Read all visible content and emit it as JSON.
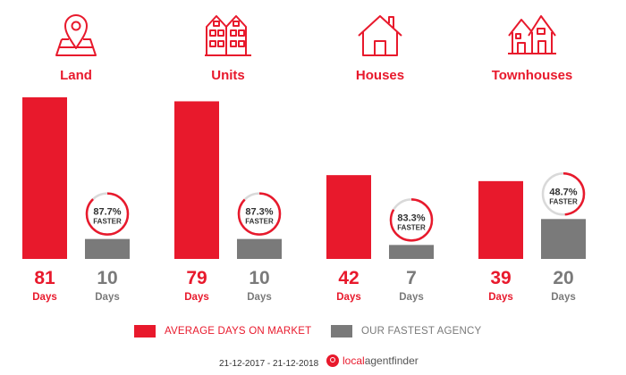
{
  "chart_data": {
    "type": "bar",
    "categories": [
      "Land",
      "Units",
      "Houses",
      "Townhouses"
    ],
    "series": [
      {
        "name": "AVERAGE DAYS ON MARKET",
        "values": [
          81,
          79,
          42,
          39
        ]
      },
      {
        "name": "OUR FASTEST AGENCY",
        "values": [
          10,
          10,
          7,
          20
        ]
      }
    ],
    "percent_faster": [
      87.7,
      87.3,
      83.3,
      48.7
    ],
    "percent_labels": [
      "87.7%",
      "87.3%",
      "83.3%",
      "48.7%"
    ],
    "faster_label": "FASTER",
    "unit_label": "Days",
    "ylim": [
      0,
      81
    ],
    "grid": false,
    "legend_position": "bottom"
  },
  "colors": {
    "market": "#e8192c",
    "agency": "#7a7a7a",
    "ring_bg": "#d9d9d9"
  },
  "icons": [
    "map-pin-icon",
    "apartment-building-icon",
    "house-icon",
    "townhouse-icon"
  ],
  "legend": {
    "market_label": "AVERAGE DAYS ON MARKET",
    "agency_label": "OUR FASTEST AGENCY"
  },
  "footer": {
    "date_range": "21-12-2017 - 21-12-2018",
    "brand_local": "local",
    "brand_rest": "agentfinder"
  }
}
